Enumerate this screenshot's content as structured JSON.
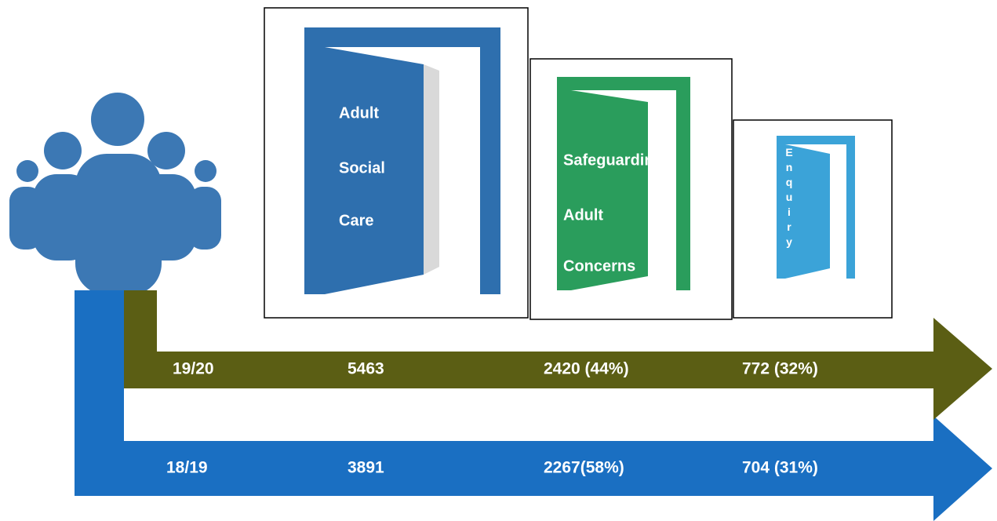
{
  "doors": [
    {
      "lines": [
        "Adult",
        "Social",
        "Care"
      ]
    },
    {
      "lines": [
        "Safeguarding",
        "Adult",
        "Concerns"
      ]
    },
    {
      "label": "Enquiry"
    }
  ],
  "rows": [
    {
      "period": "19/20",
      "cells": [
        "5463",
        "2420 (44%)",
        "772 (32%)"
      ]
    },
    {
      "period": "18/19",
      "cells": [
        "3891",
        "2267(58%)",
        "704 (31%)"
      ]
    }
  ]
}
